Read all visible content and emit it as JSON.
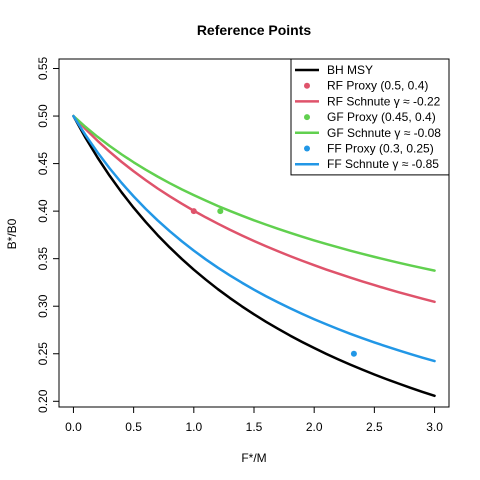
{
  "chart_data": {
    "type": "line",
    "title": "Reference Points",
    "xlabel": "F*/M",
    "ylabel": "B*/B0",
    "xlim": [
      0.0,
      3.0
    ],
    "ylim": [
      0.2,
      0.55
    ],
    "xticks": [
      "0.0",
      "0.5",
      "1.0",
      "1.5",
      "2.0",
      "2.5",
      "3.0"
    ],
    "yticks": [
      "0.20",
      "0.25",
      "0.30",
      "0.35",
      "0.40",
      "0.45",
      "0.50",
      "0.55"
    ],
    "grid": false,
    "legend_position": "top-right",
    "x": [
      0.0,
      0.1,
      0.2,
      0.3,
      0.4,
      0.5,
      0.6,
      0.7,
      0.8,
      0.9,
      1.0,
      1.1,
      1.2,
      1.3,
      1.4,
      1.5,
      1.6,
      1.7,
      1.8,
      1.9,
      2.0,
      2.1,
      2.2,
      2.3,
      2.4,
      2.5,
      2.6,
      2.7,
      2.8,
      2.9,
      3.0
    ],
    "series": [
      {
        "name": "BH MSY",
        "color": "#000000",
        "values": [
          0.5,
          0.4772,
          0.4564,
          0.4373,
          0.4198,
          0.4036,
          0.3886,
          0.3747,
          0.3618,
          0.3497,
          0.3384,
          0.3279,
          0.3179,
          0.3086,
          0.2998,
          0.2915,
          0.2836,
          0.2762,
          0.2691,
          0.2624,
          0.256,
          0.2499,
          0.2441,
          0.2386,
          0.2333,
          0.2282,
          0.2233,
          0.2187,
          0.2142,
          0.2099,
          0.2058
        ]
      },
      {
        "name": "RF Schnute γ ≈ -0.22",
        "color": "#DF536B",
        "values": [
          0.5,
          0.4864,
          0.474,
          0.4625,
          0.4518,
          0.4419,
          0.4326,
          0.4238,
          0.4156,
          0.4078,
          0.4004,
          0.3934,
          0.3868,
          0.3804,
          0.3744,
          0.3686,
          0.3631,
          0.3578,
          0.3527,
          0.3478,
          0.3431,
          0.3386,
          0.3343,
          0.3301,
          0.3261,
          0.3222,
          0.3184,
          0.3148,
          0.3113,
          0.3079,
          0.3046
        ]
      },
      {
        "name": "GF Schnute γ ≈ -0.08",
        "color": "#61D04F",
        "values": [
          0.5,
          0.4886,
          0.4782,
          0.4686,
          0.4597,
          0.4514,
          0.4436,
          0.4363,
          0.4294,
          0.4229,
          0.4168,
          0.411,
          0.4054,
          0.4002,
          0.3952,
          0.3903,
          0.3858,
          0.3814,
          0.3772,
          0.3731,
          0.3692,
          0.3655,
          0.3619,
          0.3584,
          0.3551,
          0.3519,
          0.3488,
          0.3458,
          0.3429,
          0.3401,
          0.3374
        ]
      },
      {
        "name": "FF Schnute γ ≈ -0.85",
        "color": "#2297E6",
        "values": [
          0.5,
          0.48,
          0.4618,
          0.4451,
          0.4297,
          0.4155,
          0.4024,
          0.3902,
          0.3789,
          0.3683,
          0.3585,
          0.3492,
          0.3405,
          0.3324,
          0.3247,
          0.3174,
          0.3105,
          0.304,
          0.2978,
          0.2919,
          0.2863,
          0.281,
          0.2759,
          0.271,
          0.2664,
          0.2619,
          0.2577,
          0.2536,
          0.2497,
          0.2459,
          0.2423
        ]
      }
    ],
    "points": [
      {
        "name": "RF Proxy (0.5, 0.4)",
        "color": "#DF536B",
        "x": 1.0,
        "y": 0.4
      },
      {
        "name": "GF Proxy (0.45, 0.4)",
        "color": "#61D04F",
        "x": 1.22,
        "y": 0.4
      },
      {
        "name": "FF Proxy (0.3, 0.25)",
        "color": "#2297E6",
        "x": 2.33,
        "y": 0.25
      }
    ],
    "legend": [
      {
        "label": "BH MSY",
        "kind": "line",
        "color": "#000000"
      },
      {
        "label": "RF Proxy (0.5, 0.4)",
        "kind": "point",
        "color": "#DF536B"
      },
      {
        "label": "RF Schnute γ ≈ -0.22",
        "kind": "line",
        "color": "#DF536B"
      },
      {
        "label": "GF Proxy (0.45, 0.4)",
        "kind": "point",
        "color": "#61D04F"
      },
      {
        "label": "GF Schnute γ ≈ -0.08",
        "kind": "line",
        "color": "#61D04F"
      },
      {
        "label": "FF Proxy (0.3, 0.25)",
        "kind": "point",
        "color": "#2297E6"
      },
      {
        "label": "FF Schnute γ ≈ -0.85",
        "kind": "line",
        "color": "#2297E6"
      }
    ]
  }
}
